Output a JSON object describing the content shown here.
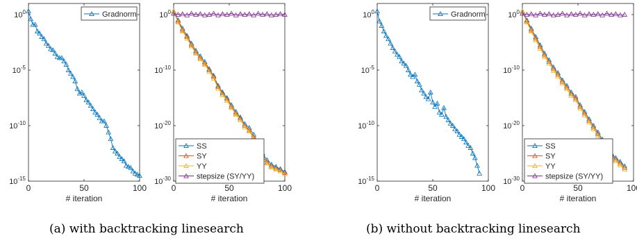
{
  "captions": {
    "a": "(a) with backtracking linesearch",
    "b": "(b) without backtracking linesearch"
  },
  "colors": {
    "ss": "#0072BD",
    "sy": "#D95319",
    "yy": "#EDB120",
    "stepsize": "#7E2F8E"
  },
  "chart_data": [
    {
      "type": "line",
      "panel": "a-left",
      "xlabel": "# iteration",
      "ylabel": "",
      "xlim": [
        0,
        100
      ],
      "x_ticks": [
        0,
        50,
        100
      ],
      "y_scale": "log",
      "ylim_exponent": [
        -15,
        1
      ],
      "y_ticks": [
        {
          "exp": 0,
          "label": "10",
          "sup": "0"
        },
        {
          "exp": -5,
          "label": "10",
          "sup": "-5"
        },
        {
          "exp": -10,
          "label": "10",
          "sup": "-10"
        },
        {
          "exp": -15,
          "label": "10",
          "sup": "-15"
        }
      ],
      "legend": {
        "placement": "top-right",
        "entries": [
          "Gradnorm"
        ]
      },
      "series": [
        {
          "name": "Gradnorm",
          "color_key": "ss",
          "marker": "triangle",
          "x": [
            0,
            2,
            4,
            6,
            8,
            10,
            12,
            14,
            16,
            18,
            20,
            22,
            24,
            26,
            28,
            30,
            32,
            34,
            36,
            38,
            40,
            42,
            44,
            46,
            48,
            50,
            52,
            54,
            56,
            58,
            60,
            62,
            64,
            66,
            68,
            70,
            72,
            74,
            76,
            78,
            80,
            82,
            84,
            86,
            88,
            90,
            92,
            94,
            96,
            98,
            100
          ],
          "log10_y": [
            0.3,
            -0.4,
            -0.9,
            -0.9,
            -1.5,
            -1.7,
            -2.0,
            -2.2,
            -2.6,
            -2.8,
            -3.1,
            -3.2,
            -3.5,
            -3.8,
            -3.9,
            -3.9,
            -4.2,
            -4.5,
            -5.0,
            -5.3,
            -5.6,
            -6.0,
            -6.7,
            -7.1,
            -7.0,
            -7.3,
            -7.7,
            -7.9,
            -8.2,
            -8.5,
            -8.8,
            -9.0,
            -9.3,
            -9.6,
            -9.6,
            -10.0,
            -10.6,
            -11.2,
            -12.0,
            -12.3,
            -12.5,
            -12.8,
            -13.0,
            -13.2,
            -13.6,
            -13.7,
            -13.8,
            -14.1,
            -14.3,
            -14.4,
            -14.5
          ]
        }
      ]
    },
    {
      "type": "line",
      "panel": "a-right",
      "xlabel": "# iteration",
      "ylabel": "",
      "xlim": [
        0,
        100
      ],
      "x_ticks": [
        0,
        50,
        100
      ],
      "y_scale": "log",
      "ylim_exponent": [
        -30,
        2
      ],
      "y_ticks": [
        {
          "exp": 0,
          "label": "10",
          "sup": "0"
        },
        {
          "exp": -10,
          "label": "10",
          "sup": "-10"
        },
        {
          "exp": -20,
          "label": "10",
          "sup": "-20"
        },
        {
          "exp": -30,
          "label": "10",
          "sup": "-30"
        }
      ],
      "legend": {
        "placement": "bottom-right",
        "entries": [
          "SS",
          "SY",
          "YY",
          "stepsize (SY/YY)"
        ]
      },
      "series": [
        {
          "name": "SS",
          "color_key": "ss",
          "marker": "triangle",
          "x": [
            0,
            4,
            8,
            12,
            16,
            20,
            24,
            28,
            32,
            36,
            40,
            44,
            48,
            52,
            56,
            60,
            64,
            68,
            72,
            76,
            80,
            84,
            88,
            92,
            96,
            100
          ],
          "log10_y": [
            0.6,
            -1.0,
            -2.5,
            -3.8,
            -5.2,
            -6.5,
            -7.5,
            -8.5,
            -9.8,
            -11.0,
            -12.8,
            -14.0,
            -15.0,
            -16.3,
            -17.5,
            -18.5,
            -19.7,
            -20.4,
            -21.6,
            -23.5,
            -25.0,
            -26.2,
            -27.0,
            -27.4,
            -27.8,
            -28.3
          ]
        },
        {
          "name": "SY",
          "color_key": "sy",
          "marker": "triangle",
          "x": [
            0,
            4,
            8,
            12,
            16,
            20,
            24,
            28,
            32,
            36,
            40,
            44,
            48,
            52,
            56,
            60,
            64,
            68,
            72,
            76,
            80,
            84,
            88,
            92,
            96,
            100
          ],
          "log10_y": [
            0.6,
            -1.2,
            -2.8,
            -4.0,
            -5.5,
            -6.8,
            -7.8,
            -8.8,
            -10.0,
            -11.2,
            -13.0,
            -14.2,
            -15.2,
            -16.6,
            -17.8,
            -18.7,
            -20.0,
            -20.8,
            -22.0,
            -23.8,
            -25.4,
            -26.6,
            -27.3,
            -27.7,
            -28.0,
            -28.5
          ]
        },
        {
          "name": "YY",
          "color_key": "yy",
          "marker": "triangle",
          "x": [
            0,
            4,
            8,
            12,
            16,
            20,
            24,
            28,
            32,
            36,
            40,
            44,
            48,
            52,
            56,
            60,
            64,
            68,
            72,
            76,
            80,
            84,
            88,
            92,
            96,
            100
          ],
          "log10_y": [
            0.6,
            -1.4,
            -3.0,
            -4.3,
            -5.7,
            -7.0,
            -8.0,
            -9.0,
            -10.3,
            -11.5,
            -13.3,
            -14.5,
            -15.5,
            -16.8,
            -18.0,
            -19.0,
            -20.3,
            -21.0,
            -22.3,
            -24.0,
            -25.6,
            -26.8,
            -27.5,
            -27.9,
            -28.2,
            -28.7
          ]
        },
        {
          "name": "stepsize (SY/YY)",
          "color_key": "stepsize",
          "marker": "triangle",
          "x": [
            0,
            4,
            8,
            12,
            16,
            20,
            24,
            28,
            32,
            36,
            40,
            44,
            48,
            52,
            56,
            60,
            64,
            68,
            72,
            76,
            80,
            84,
            88,
            92,
            96,
            100
          ],
          "log10_y": [
            0.2,
            0.0,
            0.1,
            -0.1,
            0.2,
            0.0,
            0.1,
            -0.1,
            0.0,
            0.2,
            -0.1,
            0.1,
            0.0,
            0.2,
            -0.1,
            0.1,
            0.0,
            0.1,
            -0.1,
            0.2,
            0.0,
            0.1,
            -0.1,
            0.0,
            0.1,
            0.0
          ]
        }
      ]
    },
    {
      "type": "line",
      "panel": "b-left",
      "xlabel": "# iteration",
      "ylabel": "",
      "xlim": [
        0,
        100
      ],
      "x_ticks": [
        0,
        50,
        100
      ],
      "y_scale": "log",
      "ylim_exponent": [
        -15,
        1
      ],
      "y_ticks": [
        {
          "exp": 0,
          "label": "10",
          "sup": "0"
        },
        {
          "exp": -5,
          "label": "10",
          "sup": "-5"
        },
        {
          "exp": -10,
          "label": "10",
          "sup": "-10"
        },
        {
          "exp": -15,
          "label": "10",
          "sup": "-15"
        }
      ],
      "legend": {
        "placement": "top-right",
        "entries": [
          "Gradnorm"
        ]
      },
      "series": [
        {
          "name": "Gradnorm",
          "color_key": "ss",
          "marker": "triangle",
          "x": [
            0,
            2,
            4,
            6,
            8,
            10,
            12,
            14,
            16,
            18,
            20,
            22,
            24,
            26,
            28,
            30,
            32,
            34,
            36,
            38,
            40,
            42,
            44,
            46,
            48,
            50,
            52,
            54,
            56,
            58,
            60,
            62,
            64,
            66,
            68,
            70,
            72,
            74,
            76,
            78,
            80,
            82,
            84,
            86,
            88,
            90,
            92
          ],
          "log10_y": [
            0.3,
            -0.6,
            -1.0,
            -1.5,
            -1.9,
            -2.2,
            -2.6,
            -3.0,
            -3.3,
            -3.6,
            -3.8,
            -4.2,
            -4.4,
            -4.6,
            -5.0,
            -5.4,
            -5.6,
            -5.4,
            -6.0,
            -6.3,
            -6.8,
            -7.1,
            -7.4,
            -7.6,
            -7.0,
            -7.9,
            -8.3,
            -8.0,
            -8.8,
            -9.0,
            -8.4,
            -9.2,
            -9.5,
            -9.8,
            -10.0,
            -10.3,
            -10.5,
            -10.8,
            -11.0,
            -11.2,
            -11.5,
            -11.8,
            -12.0,
            -12.5,
            -12.9,
            -13.6,
            -14.3
          ]
        }
      ]
    },
    {
      "type": "line",
      "panel": "b-right",
      "xlabel": "# iteration",
      "ylabel": "",
      "xlim": [
        0,
        100
      ],
      "x_ticks": [
        0,
        50,
        100
      ],
      "y_scale": "log",
      "ylim_exponent": [
        -30,
        2
      ],
      "y_ticks": [
        {
          "exp": 0,
          "label": "10",
          "sup": "0"
        },
        {
          "exp": -10,
          "label": "10",
          "sup": "-10"
        },
        {
          "exp": -20,
          "label": "10",
          "sup": "-20"
        },
        {
          "exp": -30,
          "label": "10",
          "sup": "-30"
        }
      ],
      "legend": {
        "placement": "bottom-right",
        "entries": [
          "SS",
          "SY",
          "YY",
          "stepsize (SY/YY)"
        ]
      },
      "series": [
        {
          "name": "SS",
          "color_key": "ss",
          "marker": "triangle",
          "x": [
            0,
            4,
            8,
            12,
            16,
            20,
            24,
            28,
            32,
            36,
            40,
            44,
            48,
            52,
            56,
            60,
            64,
            68,
            72,
            76,
            80,
            84,
            88,
            92
          ],
          "log10_y": [
            0.6,
            -1.0,
            -2.5,
            -4.0,
            -5.5,
            -7.0,
            -8.2,
            -9.5,
            -10.5,
            -11.8,
            -12.8,
            -14.0,
            -14.8,
            -16.3,
            -17.5,
            -18.8,
            -20.0,
            -21.2,
            -22.5,
            -23.8,
            -25.0,
            -25.8,
            -26.5,
            -27.3
          ]
        },
        {
          "name": "SY",
          "color_key": "sy",
          "marker": "triangle",
          "x": [
            0,
            4,
            8,
            12,
            16,
            20,
            24,
            28,
            32,
            36,
            40,
            44,
            48,
            52,
            56,
            60,
            64,
            68,
            72,
            76,
            80,
            84,
            88,
            92
          ],
          "log10_y": [
            0.6,
            -1.2,
            -2.8,
            -4.3,
            -5.8,
            -7.3,
            -8.5,
            -9.8,
            -10.8,
            -12.1,
            -13.1,
            -14.3,
            -15.1,
            -16.6,
            -17.8,
            -19.1,
            -20.3,
            -21.5,
            -22.8,
            -24.1,
            -25.3,
            -26.1,
            -26.8,
            -27.6
          ]
        },
        {
          "name": "YY",
          "color_key": "yy",
          "marker": "triangle",
          "x": [
            0,
            4,
            8,
            12,
            16,
            20,
            24,
            28,
            32,
            36,
            40,
            44,
            48,
            52,
            56,
            60,
            64,
            68,
            72,
            76,
            80,
            84,
            88,
            92
          ],
          "log10_y": [
            0.6,
            -1.4,
            -3.0,
            -4.6,
            -6.1,
            -7.6,
            -8.8,
            -10.1,
            -11.1,
            -12.4,
            -13.4,
            -14.6,
            -15.4,
            -16.9,
            -18.1,
            -19.4,
            -20.6,
            -21.8,
            -23.1,
            -24.4,
            -25.6,
            -26.4,
            -27.1,
            -27.9
          ]
        },
        {
          "name": "stepsize (SY/YY)",
          "color_key": "stepsize",
          "marker": "triangle",
          "x": [
            0,
            4,
            8,
            12,
            16,
            20,
            24,
            28,
            32,
            36,
            40,
            44,
            48,
            52,
            56,
            60,
            64,
            68,
            72,
            76,
            80,
            84,
            88,
            92
          ],
          "log10_y": [
            0.2,
            0.0,
            0.1,
            -0.1,
            0.2,
            0.0,
            0.1,
            -0.1,
            0.0,
            0.2,
            -0.1,
            0.1,
            0.0,
            0.2,
            -0.1,
            0.1,
            0.0,
            0.1,
            -0.1,
            0.2,
            0.0,
            0.1,
            -0.1,
            0.0
          ]
        }
      ]
    }
  ]
}
